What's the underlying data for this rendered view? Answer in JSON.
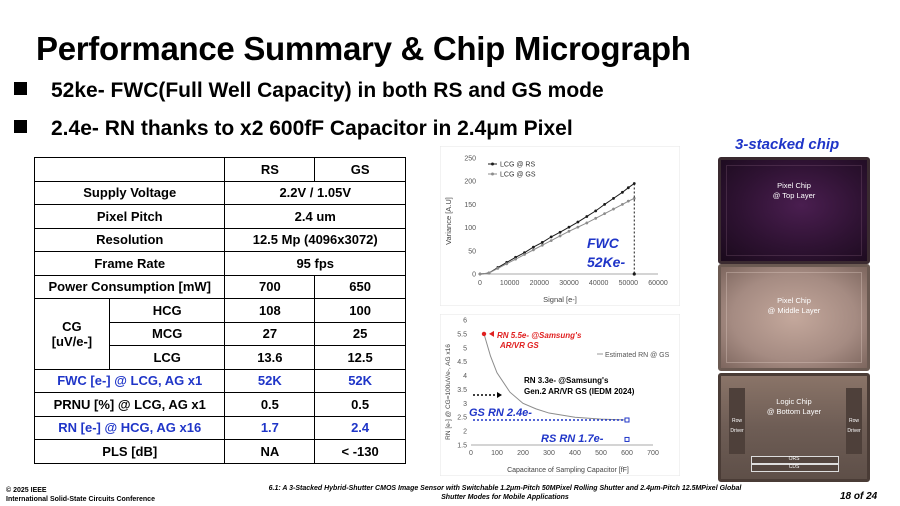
{
  "title": "Performance Summary & Chip Micrograph",
  "bullets": [
    "52ke- FWC(Full Well Capacity) in both RS and GS mode",
    "2.4e- RN thanks to x2 600fF Capacitor in 2.4μm Pixel"
  ],
  "table": {
    "header": [
      "",
      "RS",
      "GS"
    ],
    "supply_voltage": {
      "label": "Supply Voltage",
      "value": "2.2V / 1.05V"
    },
    "pixel_pitch": {
      "label": "Pixel Pitch",
      "value": "2.4 um"
    },
    "resolution": {
      "label": "Resolution",
      "value": "12.5 Mp (4096x3072)"
    },
    "frame_rate": {
      "label": "Frame Rate",
      "value": "95 fps"
    },
    "power": {
      "label": "Power Consumption [mW]",
      "rs": "700",
      "gs": "650"
    },
    "cg": {
      "label_line1": "CG",
      "label_line2": "[uV/e-]",
      "rows": [
        {
          "name": "HCG",
          "rs": "108",
          "gs": "100"
        },
        {
          "name": "MCG",
          "rs": "27",
          "gs": "25"
        },
        {
          "name": "LCG",
          "rs": "13.6",
          "gs": "12.5"
        }
      ]
    },
    "fwc": {
      "label": "FWC [e-] @ LCG, AG x1",
      "rs": "52K",
      "gs": "52K"
    },
    "prnu": {
      "label": "PRNU [%] @ LCG, AG x1",
      "rs": "0.5",
      "gs": "0.5"
    },
    "rn": {
      "label": "RN [e-] @ HCG, AG x16",
      "rs": "1.7",
      "gs": "2.4"
    },
    "pls": {
      "label": "PLS [dB]",
      "rs": "NA",
      "gs": "< -130"
    }
  },
  "chart_data": [
    {
      "type": "line",
      "xlabel": "Signal [e-]",
      "ylabel": "Variance [A.U]",
      "xlim": [
        0,
        60000
      ],
      "ylim": [
        0,
        250
      ],
      "xticks": [
        "0",
        "10000",
        "20000",
        "30000",
        "40000",
        "50000",
        "60000"
      ],
      "yticks": [
        "0",
        "50",
        "100",
        "150",
        "200",
        "250"
      ],
      "legend_position": "top-left",
      "series": [
        {
          "name": "LCG @ RS",
          "color": "#1a1a1a",
          "x": [
            0,
            3000,
            6000,
            9000,
            12000,
            15000,
            18000,
            21000,
            24000,
            27000,
            30000,
            33000,
            36000,
            39000,
            42000,
            45000,
            48000,
            50000,
            52000
          ],
          "y": [
            0,
            2,
            14,
            25,
            36,
            46,
            58,
            68,
            80,
            90,
            101,
            112,
            124,
            136,
            150,
            163,
            176,
            186,
            195
          ]
        },
        {
          "name": "LCG @ GS",
          "color": "#8c8c8c",
          "x": [
            0,
            3000,
            6000,
            9000,
            12000,
            15000,
            18000,
            21000,
            24000,
            27000,
            30000,
            33000,
            36000,
            39000,
            42000,
            45000,
            48000,
            50000,
            52000
          ],
          "y": [
            0,
            2,
            12,
            22,
            32,
            42,
            52,
            62,
            72,
            82,
            92,
            101,
            110,
            120,
            130,
            140,
            150,
            157,
            163
          ]
        }
      ],
      "drop_x": 52000,
      "annotation": {
        "line1": "FWC",
        "line2": "52Ke-",
        "color": "#1f35c8"
      }
    },
    {
      "type": "scatter",
      "xlabel": "Capacitance of Sampling Capacitor [fF]",
      "ylabel": "RN [e-] @ CG=100uV/e-, AG x16",
      "xlim": [
        0,
        700
      ],
      "ylim": [
        1.5,
        6
      ],
      "xticks": [
        "0",
        "100",
        "200",
        "300",
        "400",
        "500",
        "600",
        "700"
      ],
      "yticks": [
        "1.5",
        "2",
        "2.5",
        "3",
        "3.5",
        "4",
        "4.5",
        "5",
        "5.5",
        "6"
      ],
      "series": [
        {
          "name": "Estimated RN @ GS",
          "color": "#8c8c8c",
          "x": [
            50,
            75,
            100,
            150,
            200,
            250,
            300,
            400,
            500,
            600
          ],
          "y": [
            5.5,
            4.7,
            4.1,
            3.4,
            3.0,
            2.8,
            2.65,
            2.5,
            2.43,
            2.4
          ]
        }
      ],
      "points": [
        {
          "name": "RN 5.5e- @Samsung's AR/VR GS",
          "x": 50,
          "y": 5.5,
          "color": "#e02020"
        },
        {
          "name": "GS RN 2.4e-",
          "x": 600,
          "y": 2.4,
          "color": "#1f35c8"
        },
        {
          "name": "RS RN 1.7e-",
          "x": 600,
          "y": 1.7,
          "color": "#1f35c8"
        }
      ],
      "annotations": {
        "samsung_line1": "RN 5.5e- @Samsung's",
        "samsung_line2": "AR/VR GS",
        "gen2_line1": "RN 3.3e- @Samsung's",
        "gen2_line2": "Gen.2 AR/VR GS (IEDM 2024)",
        "gs_rn": "GS RN 2.4e-",
        "rs_rn": "RS RN 1.7e-",
        "legend": "Estimated RN @ GS"
      }
    }
  ],
  "stack": {
    "label": "3-stacked chip",
    "top": {
      "line1": "Pixel Chip",
      "line2": "@ Top Layer"
    },
    "middle": {
      "line1": "Pixel Chip",
      "line2": "@ Middle Layer"
    },
    "bottom": {
      "line1": "Logic Chip",
      "line2": "@ Bottom Layer",
      "row_driver": "Row Driver",
      "cds": "CDS",
      "ors": "ORS"
    }
  },
  "footer": {
    "left_line1": "© 2025 IEEE",
    "left_line2": "International Solid-State Circuits Conference",
    "mid_line1": "6.1: A 3-Stacked Hybrid-Shutter CMOS Image Sensor with Switchable 1.2μm-Pitch 50MPixel Rolling Shutter and 2.4μm-Pitch 12.5MPixel Global",
    "mid_line2": "Shutter Modes for Mobile Applications",
    "page": "18 of 24"
  }
}
